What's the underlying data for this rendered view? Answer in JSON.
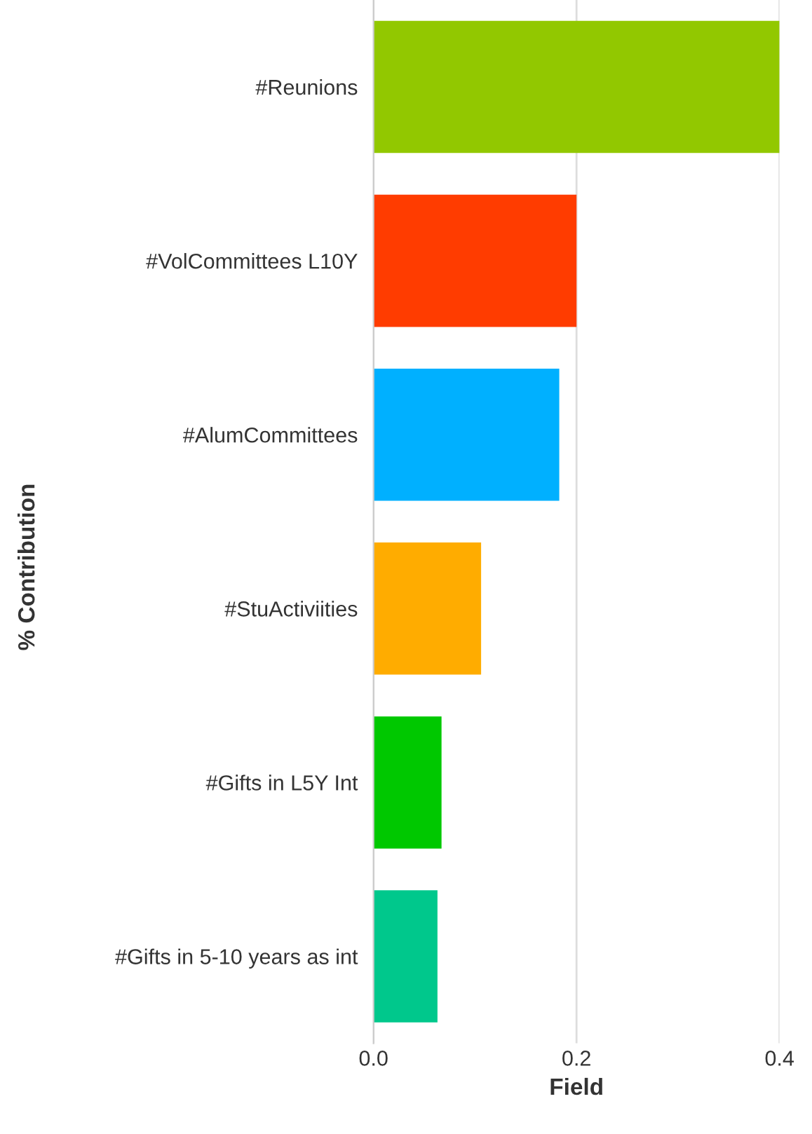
{
  "chart_data": {
    "type": "bar",
    "orientation": "horizontal",
    "xlabel": "Field",
    "ylabel": "% Contribution",
    "categories": [
      "#Reunions",
      "#VolCommittees L10Y",
      "#AlumCommittees",
      "#StuActiviities",
      "#Gifts in L5Y Int",
      "#Gifts in 5-10 years as int"
    ],
    "values": [
      0.4,
      0.2,
      0.183,
      0.106,
      0.067,
      0.063
    ],
    "colors": [
      "#92c800",
      "#ff3c00",
      "#00b0ff",
      "#ffac00",
      "#00c800",
      "#00c88c"
    ],
    "xlim": [
      0,
      0.4
    ],
    "xticks": [
      {
        "value": 0,
        "label": "0.0"
      },
      0.2,
      0.4
    ],
    "grid": "x",
    "legend": false
  }
}
